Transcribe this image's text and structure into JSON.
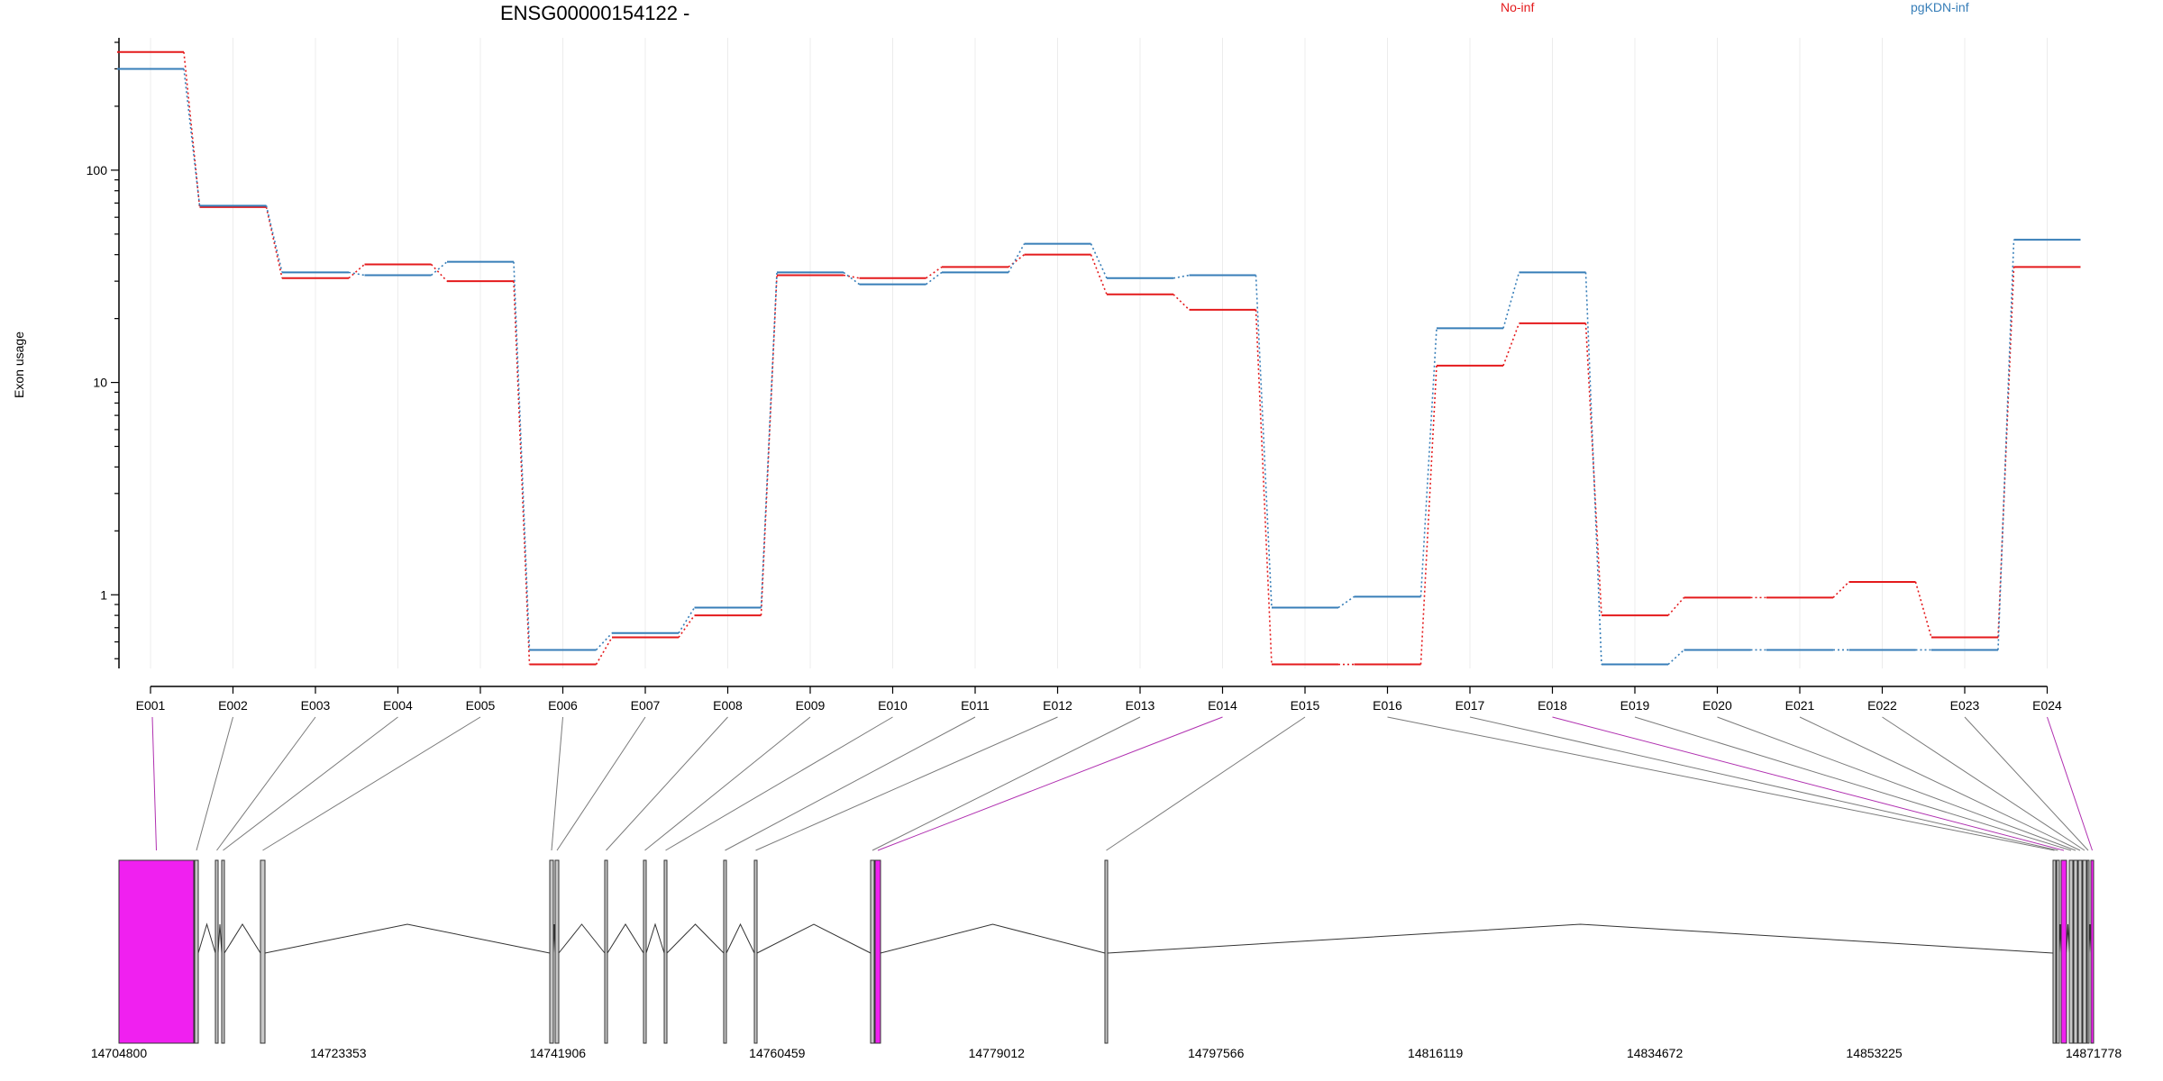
{
  "chart_data": {
    "type": "line",
    "title": "ENSG00000154122 -",
    "ylabel": "Exon usage",
    "yscale": "log",
    "ylim": [
      0.45,
      420
    ],
    "yticks": [
      {
        "value": 1,
        "label": "1"
      },
      {
        "value": 10,
        "label": "10"
      },
      {
        "value": 100,
        "label": "100"
      }
    ],
    "grid": "vertical",
    "legend_placement": "top",
    "categories": [
      "E001",
      "E002",
      "E003",
      "E004",
      "E005",
      "E006",
      "E007",
      "E008",
      "E009",
      "E010",
      "E011",
      "E012",
      "E013",
      "E014",
      "E015",
      "E016",
      "E017",
      "E018",
      "E019",
      "E020",
      "E021",
      "E022",
      "E023",
      "E024"
    ],
    "series": [
      {
        "name": "No-inf",
        "color": "#e41a1c",
        "values": [
          360,
          67,
          31,
          36,
          30,
          0.47,
          0.63,
          0.8,
          32,
          31,
          35,
          40,
          26,
          22,
          0.47,
          0.47,
          12,
          19,
          0.8,
          0.97,
          0.97,
          1.15,
          0.63,
          35
        ]
      },
      {
        "name": "pgKDN-inf",
        "color": "#377eb8",
        "values": [
          300,
          68,
          33,
          32,
          37,
          0.55,
          0.66,
          0.87,
          33,
          29,
          33,
          45,
          31,
          32,
          0.87,
          0.98,
          18,
          33,
          0.47,
          0.55,
          0.55,
          0.55,
          0.55,
          47
        ]
      }
    ],
    "gene_model": {
      "coordinate_ticks": [
        "14704800",
        "14723353",
        "14741906",
        "14760459",
        "14779012",
        "14797566",
        "14816119",
        "14834672",
        "14853225",
        "14871778"
      ],
      "highlight_color": "#f020f0",
      "exon_color": "#c8c8c8",
      "highlighted_exons": [
        "E001",
        "E014",
        "E018",
        "E024"
      ]
    }
  }
}
